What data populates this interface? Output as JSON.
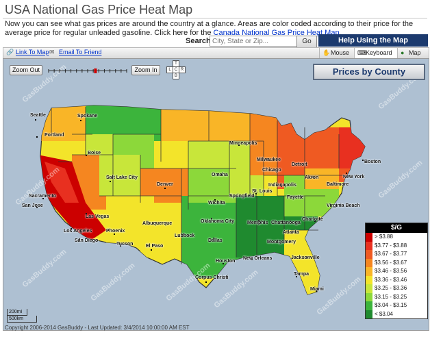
{
  "page": {
    "title": "USA National Gas Price Heat Map",
    "intro": "Now you can see what gas prices are around the country at a glance. Areas are color coded according to their price for the average price for regular unleaded gasoline. Click here for the",
    "canada_link": "Canada National Gas Price Heat Map",
    "intro_end": "."
  },
  "search": {
    "label": "Search:",
    "placeholder": "City, State or Zip...",
    "go_label": "Go"
  },
  "help": {
    "title": "Help Using the Map"
  },
  "toolbar": {
    "link_to_map": "Link To Map",
    "email_to_friend": "Email To Friend",
    "modes": [
      {
        "label": "Mouse",
        "icon": "hand-icon",
        "active": false
      },
      {
        "label": "Keyboard",
        "icon": "keyboard-icon",
        "active": true
      },
      {
        "label": "Map",
        "icon": "globe-icon",
        "active": false
      }
    ]
  },
  "map_controls": {
    "zoom_out": "Zoom Out",
    "zoom_in": "Zoom In",
    "zoom_level": 0.6,
    "pan": {
      "up": "T",
      "left": "L",
      "center": "C",
      "right": "R",
      "down": "B"
    }
  },
  "prices_by_county": "Prices by County",
  "legend": {
    "title": "$/G",
    "items": [
      {
        "label": "> $3.88",
        "color": "#cc0000"
      },
      {
        "label": "$3.77 - $3.88",
        "color": "#e83020"
      },
      {
        "label": "$3.67 - $3.77",
        "color": "#ef5a22"
      },
      {
        "label": "$3.56 - $3.67",
        "color": "#f58620"
      },
      {
        "label": "$3.46 - $3.56",
        "color": "#f9b527"
      },
      {
        "label": "$3.36 - $3.46",
        "color": "#f3e42a"
      },
      {
        "label": "$3.25 - $3.36",
        "color": "#c8e63a"
      },
      {
        "label": "$3.15 - $3.25",
        "color": "#8cd83a"
      },
      {
        "label": "$3.04 - $3.15",
        "color": "#3cb43c"
      },
      {
        "label": "< $3.04",
        "color": "#1f8a2f"
      }
    ]
  },
  "cities": [
    "Seattle",
    "Spokane",
    "Portland",
    "Boise",
    "Salt Lake City",
    "Denver",
    "Sacramento",
    "San Jose",
    "Las Vegas",
    "Los Angeles",
    "San Diego",
    "Phoenix",
    "Tucson",
    "Albuquerque",
    "El Paso",
    "Lubbock",
    "Oklahoma City",
    "Dallas",
    "Houston",
    "Corpus Christi",
    "Omaha",
    "Wichita",
    "Springfield",
    "St. Louis",
    "Minneapolis",
    "Milwaukee",
    "Chicago",
    "Detroit",
    "Akron",
    "Indianapolis",
    "Fayette",
    "Memphis",
    "Chattanooga",
    "Atlanta",
    "Charlotte",
    "Montgomery",
    "New Orleans",
    "Jacksonville",
    "Tampa",
    "Miami",
    "Baltimore",
    "New York",
    "Boston",
    "Virginia Beach"
  ],
  "scale": {
    "mi": "200mi",
    "km": "500km"
  },
  "copyright": "Copyright 2006-2014 GasBuddy - Last Updated: 3/4/2014 10:00:00 AM EST",
  "watermark": "GasBuddy.com"
}
